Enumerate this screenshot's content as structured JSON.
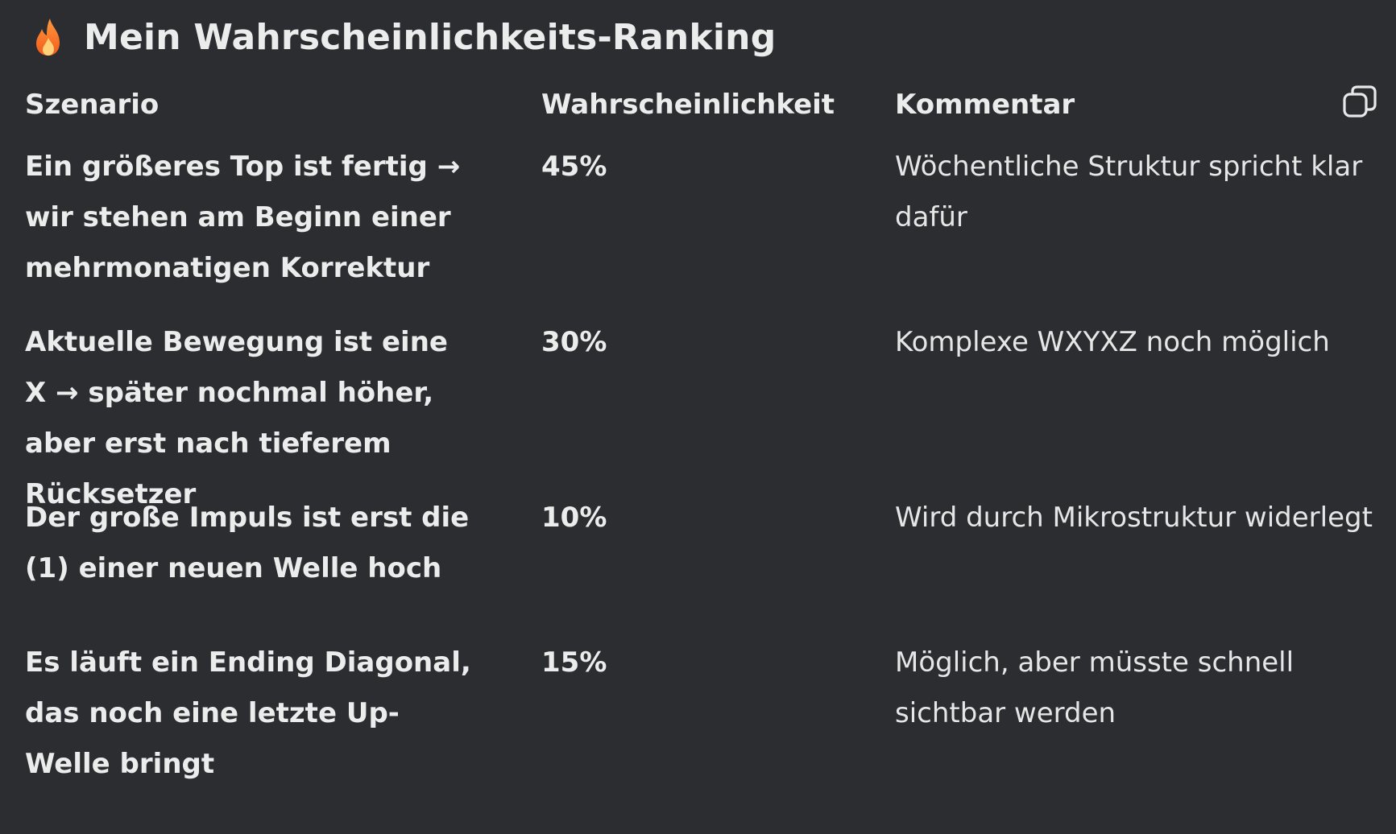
{
  "heading": {
    "icon": "fire-icon",
    "title": "Mein Wahrscheinlichkeits-Ranking"
  },
  "table": {
    "headers": [
      "Szenario",
      "Wahrscheinlichkeit",
      "Kommentar"
    ],
    "copy_icon": "copy-icon",
    "rows": [
      {
        "scenario": "Ein größeres Top ist fertig → wir stehen am Beginn einer mehrmonatigen Korrektur",
        "probability": "45%",
        "comment": "Wöchentliche Struktur spricht klar dafür"
      },
      {
        "scenario": "Aktuelle Bewegung ist eine X → später nochmal höher, aber erst nach tieferem Rücksetzer",
        "probability": "30%",
        "comment": "Komplexe WXYXZ noch möglich"
      },
      {
        "scenario": "Der große Impuls ist erst die (1) einer neuen Welle hoch",
        "probability": "10%",
        "comment": "Wird durch Mikrostruktur widerlegt"
      },
      {
        "scenario": "Es läuft ein Ending Diagonal, das noch eine letzte Up-Welle bringt",
        "probability": "15%",
        "comment": "Möglich, aber müsste schnell sichtbar werden"
      }
    ]
  }
}
